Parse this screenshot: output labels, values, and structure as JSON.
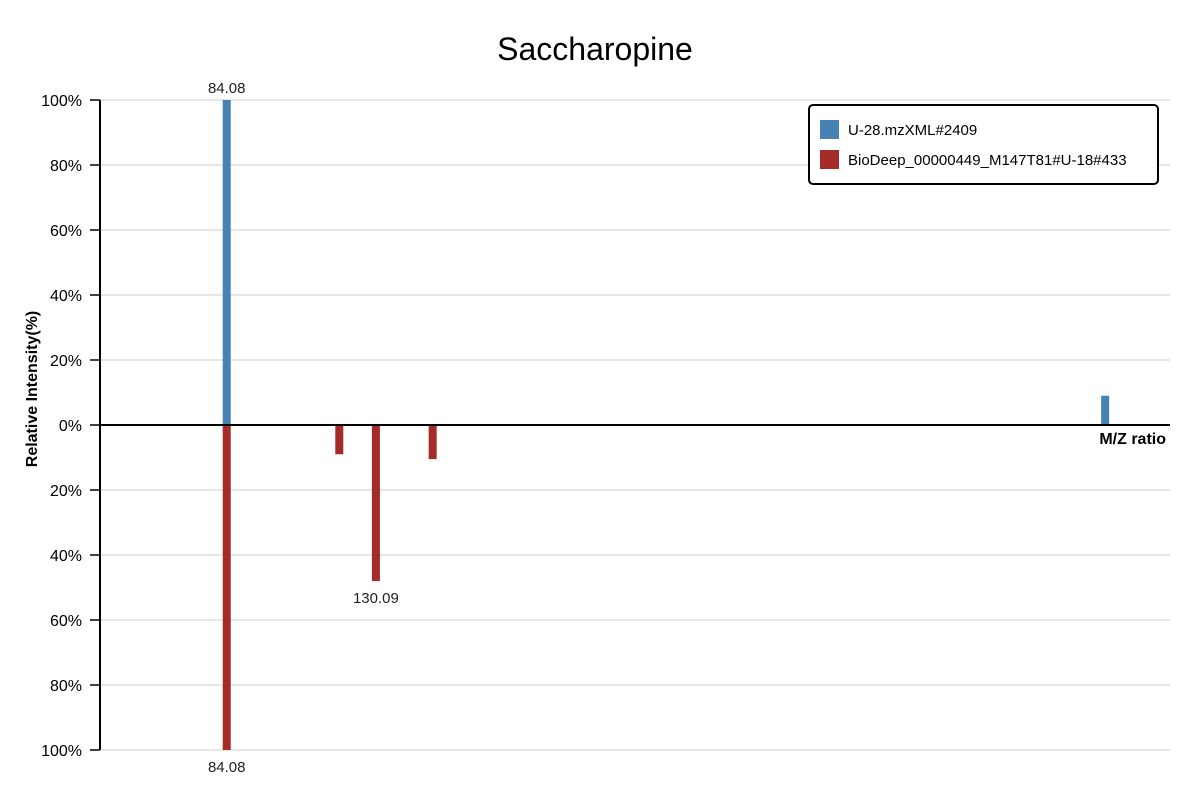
{
  "chart_data": {
    "type": "bar",
    "title": "Saccharopine",
    "xlabel": "M/Z ratio",
    "ylabel": "Relative Intensity(%)",
    "x_range": [
      45,
      375
    ],
    "ylim_top": [
      0,
      100
    ],
    "ylim_bottom": [
      0,
      100
    ],
    "y_ticks": [
      100,
      80,
      60,
      40,
      20,
      0,
      20,
      40,
      60,
      80,
      100
    ],
    "grid": true,
    "legend_position": "top-right",
    "series": [
      {
        "name": "U-28.mzXML#2409",
        "color": "#4682b4",
        "direction": "up",
        "peaks": [
          {
            "mz": 84.08,
            "intensity": 100,
            "label": "84.08"
          },
          {
            "mz": 355.0,
            "intensity": 9,
            "label": ""
          }
        ]
      },
      {
        "name": "BioDeep_00000449_M147T81#U-18#433",
        "color": "#a52a2a",
        "direction": "down",
        "peaks": [
          {
            "mz": 84.08,
            "intensity": 100,
            "label": "84.08"
          },
          {
            "mz": 118.8,
            "intensity": 9,
            "label": ""
          },
          {
            "mz": 130.09,
            "intensity": 48,
            "label": "130.09"
          },
          {
            "mz": 147.6,
            "intensity": 10.5,
            "label": ""
          }
        ]
      }
    ]
  }
}
